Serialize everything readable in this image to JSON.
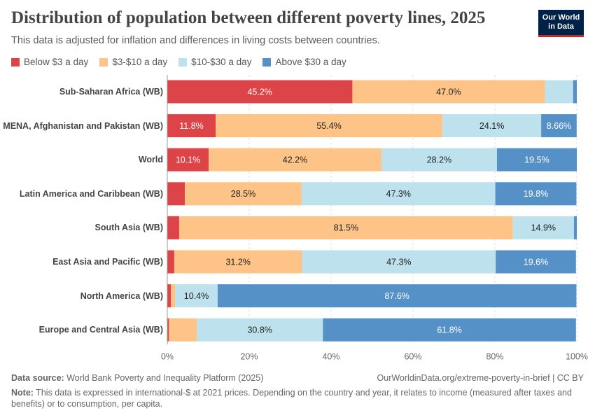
{
  "chart_data": {
    "type": "bar",
    "orientation": "horizontal",
    "stacked": true,
    "title": "Distribution of population between different poverty lines, 2025",
    "subtitle": "This data is adjusted for inflation and differences in living costs between countries.",
    "categories": [
      "Sub-Saharan Africa (WB)",
      "MENA, Afghanistan and Pakistan (WB)",
      "World",
      "Latin America and Caribbean (WB)",
      "South Asia (WB)",
      "East Asia and Pacific (WB)",
      "North America (WB)",
      "Europe and Central Asia (WB)"
    ],
    "series": [
      {
        "name": "Below $3 a day",
        "color": "#dd4447",
        "values": [
          45.2,
          11.8,
          10.1,
          4.3,
          2.9,
          1.7,
          0.9,
          0.4
        ],
        "value_labels": [
          "45.2%",
          "11.8%",
          "10.1%",
          null,
          null,
          null,
          null,
          null
        ]
      },
      {
        "name": "$3-$10 a day",
        "color": "#fdc387",
        "values": [
          47.0,
          55.4,
          42.2,
          28.5,
          81.5,
          31.2,
          1.0,
          6.8
        ],
        "value_labels": [
          "47.0%",
          "55.4%",
          "42.2%",
          "28.5%",
          "81.5%",
          "31.2%",
          null,
          null
        ]
      },
      {
        "name": "$10-$30 a day",
        "color": "#bde2ed",
        "values": [
          6.9,
          24.1,
          28.2,
          47.3,
          14.9,
          47.3,
          10.4,
          30.8
        ],
        "value_labels": [
          null,
          "24.1%",
          "28.2%",
          "47.3%",
          "14.9%",
          "47.3%",
          "10.4%",
          "30.8%"
        ]
      },
      {
        "name": "Above $30 a day",
        "color": "#5591c7",
        "values": [
          0.9,
          8.66,
          19.5,
          19.8,
          0.7,
          19.6,
          87.6,
          61.8
        ],
        "value_labels": [
          null,
          "8.66%",
          "19.5%",
          "19.8%",
          null,
          "19.6%",
          "87.6%",
          "61.8%"
        ]
      }
    ],
    "xlim": [
      0,
      100
    ],
    "xticks": [
      {
        "value": 0,
        "label": "0%"
      },
      {
        "value": 20,
        "label": "20%"
      },
      {
        "value": 40,
        "label": "40%"
      },
      {
        "value": 60,
        "label": "60%"
      },
      {
        "value": 80,
        "label": "80%"
      },
      {
        "value": 100,
        "label": "100%"
      }
    ],
    "grid": true
  },
  "logo": [
    "Our World",
    "in Data"
  ],
  "footer": {
    "source_label": "Data source:",
    "source": "World Bank Poverty and Inequality Platform (2025)",
    "url": "OurWorldinData.org/extreme-poverty-in-brief | CC BY",
    "note_label": "Note:",
    "note": "This data is expressed in international-$ at 2021 prices. Depending on the country and year, it relates to income (measured after taxes and benefits) or to consumption, per capita."
  }
}
